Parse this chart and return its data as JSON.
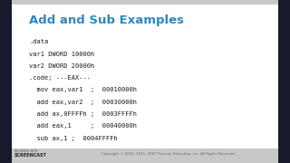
{
  "title": "Add and Sub Examples",
  "title_color": "#2E86C1",
  "bg_color": "#C8C8C8",
  "slide_bg": "#FFFFFF",
  "code_lines": [
    ".data",
    "var1 DWORD 10000h",
    "var2 DWORD 20000h",
    ".code; ---EAX---",
    "  mov eax,var1  ;  00010000h",
    "  add eax,var2  ;  00030000h",
    "  add ax,0FFFFh ;  0003FFFFh",
    "  add eax,1     ;  00040000h",
    "  sub ax,1 ;  0004FFFFh"
  ],
  "code_color": "#1A1A1A",
  "footer_right": "Copyright © 2010, 2011, 2007 Pearson Education, Inc. All Rights Reserved",
  "footer_color": "#666666",
  "bar_color": "#1A1A2E"
}
